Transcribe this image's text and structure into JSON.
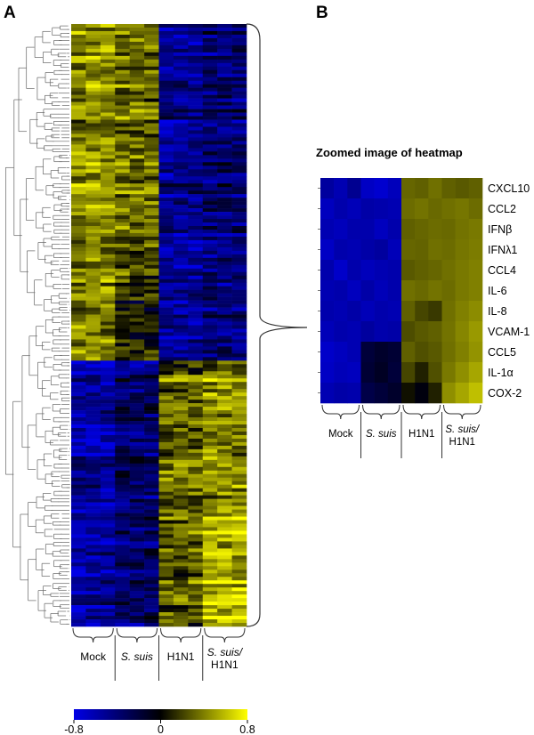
{
  "chart_data": {
    "type": "heatmap",
    "panel_a": {
      "label": "A",
      "group_labels": [
        {
          "line1": "Mock",
          "line2": "",
          "italic1": false
        },
        {
          "line1": "S. suis",
          "line2": "",
          "italic1": true
        },
        {
          "line1": "H1N1",
          "line2": "",
          "italic1": false
        },
        {
          "line1": "S. suis/",
          "line2": "H1N1",
          "italic1": true
        }
      ]
    },
    "panel_b": {
      "label": "B",
      "title": "Zoomed image of heatmap",
      "genes": [
        "CXCL10",
        "CCL2",
        "IFNβ",
        "IFNλ1",
        "CCL4",
        "IL-6",
        "IL-8",
        "VCAM-1",
        "CCL5",
        "IL-1α",
        "COX-2"
      ],
      "group_labels": [
        {
          "line1": "Mock",
          "line2": "",
          "italic1": false
        },
        {
          "line1": "S. suis",
          "line2": "",
          "italic1": true
        },
        {
          "line1": "H1N1",
          "line2": "",
          "italic1": false
        },
        {
          "line1": "S. suis/",
          "line2": "H1N1",
          "italic1": true
        }
      ],
      "values": [
        [
          -0.55,
          -0.62,
          -0.5,
          -0.68,
          -0.72,
          -0.65,
          0.32,
          0.3,
          0.35,
          0.3,
          0.28,
          0.3
        ],
        [
          -0.66,
          -0.6,
          -0.64,
          -0.58,
          -0.6,
          -0.62,
          0.34,
          0.36,
          0.33,
          0.35,
          0.37,
          0.34
        ],
        [
          -0.62,
          -0.65,
          -0.6,
          -0.6,
          -0.66,
          -0.6,
          0.3,
          0.32,
          0.34,
          0.33,
          0.36,
          0.38
        ],
        [
          -0.68,
          -0.6,
          -0.62,
          -0.58,
          -0.55,
          -0.64,
          0.32,
          0.31,
          0.35,
          0.34,
          0.37,
          0.39
        ],
        [
          -0.6,
          -0.7,
          -0.6,
          -0.65,
          -0.62,
          -0.6,
          0.28,
          0.3,
          0.32,
          0.35,
          0.38,
          0.4
        ],
        [
          -0.62,
          -0.6,
          -0.66,
          -0.58,
          -0.64,
          -0.6,
          0.35,
          0.33,
          0.36,
          0.34,
          0.38,
          0.4
        ],
        [
          -0.6,
          -0.62,
          -0.58,
          -0.64,
          -0.6,
          -0.62,
          0.3,
          0.22,
          0.18,
          0.35,
          0.4,
          0.44
        ],
        [
          -0.64,
          -0.6,
          -0.62,
          -0.55,
          -0.6,
          -0.58,
          0.24,
          0.28,
          0.3,
          0.36,
          0.42,
          0.48
        ],
        [
          -0.7,
          -0.66,
          -0.62,
          -0.2,
          -0.15,
          -0.18,
          0.3,
          0.25,
          0.28,
          0.35,
          0.4,
          0.46
        ],
        [
          -0.68,
          -0.64,
          -0.66,
          -0.18,
          -0.12,
          -0.2,
          0.22,
          0.1,
          0.25,
          0.38,
          0.45,
          0.52
        ],
        [
          -0.62,
          -0.58,
          -0.6,
          -0.25,
          -0.2,
          -0.15,
          0.05,
          -0.05,
          0.1,
          0.45,
          0.52,
          0.6
        ]
      ]
    },
    "colorbar": {
      "min": -0.8,
      "max": 0.8,
      "tick_labels": [
        "-0.8",
        "0",
        "0.8"
      ],
      "colors": [
        "#0000e6",
        "#000000",
        "#ffff00"
      ]
    }
  }
}
